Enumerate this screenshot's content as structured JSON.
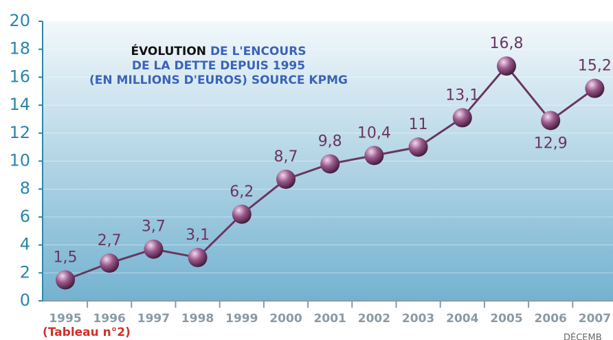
{
  "chart_data": {
    "type": "line",
    "title": [
      "ÉVOLUTION",
      "DE L'ENCOURS",
      "DE LA DETTE DEPUIS 1995",
      "(EN MILLIONS D'EUROS) SOURCE KPMG"
    ],
    "categories": [
      "1995",
      "1996",
      "1997",
      "1998",
      "1999",
      "2000",
      "2001",
      "2002",
      "2003",
      "2004",
      "2005",
      "2006",
      "2007"
    ],
    "values": [
      1.5,
      2.7,
      3.7,
      3.1,
      6.2,
      8.7,
      9.8,
      10.4,
      11,
      13.1,
      16.8,
      12.9,
      15.2
    ],
    "value_labels": [
      "1,5",
      "2,7",
      "3,7",
      "3,1",
      "6,2",
      "8,7",
      "9,8",
      "10,4",
      "11",
      "13,1",
      "16,8",
      "12,9",
      "15,2"
    ],
    "color": "#6a3560",
    "ylim": [
      0,
      20
    ],
    "yticks": [
      0,
      2,
      4,
      6,
      8,
      10,
      12,
      14,
      16,
      18,
      20
    ],
    "grid": true,
    "caption": "(Tableau n°2)",
    "footer": "DÉCEMB"
  }
}
